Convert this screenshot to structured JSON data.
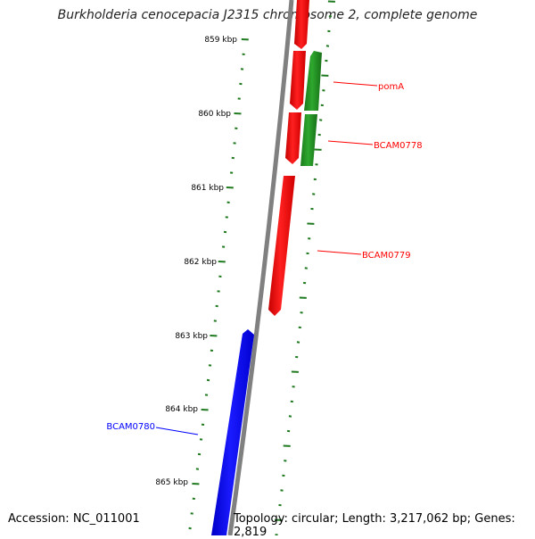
{
  "title": "Burkholderia cenocepacia J2315 chromosome 2, complete genome",
  "footer": {
    "accession": "Accession: NC_011001",
    "summary": "Topology: circular; Length: 3,217,062 bp; Genes: 2,819"
  },
  "colors": {
    "backbone": "#808080",
    "forward_gene": "#ff0000",
    "reverse_gene": "#0000ff",
    "accent_gene": "#1f8f1f",
    "tick": "#1f7a1f"
  },
  "kbp_labels": [
    "859 kbp",
    "860 kbp",
    "861 kbp",
    "862 kbp",
    "863 kbp",
    "864 kbp",
    "865 kbp"
  ],
  "genes": [
    {
      "label": "pomA",
      "color": "#ff0000"
    },
    {
      "label": "BCAM0778",
      "color": "#ff0000"
    },
    {
      "label": "BCAM0779",
      "color": "#ff0000"
    },
    {
      "label": "BCAM0780",
      "color": "#0000ff"
    }
  ]
}
